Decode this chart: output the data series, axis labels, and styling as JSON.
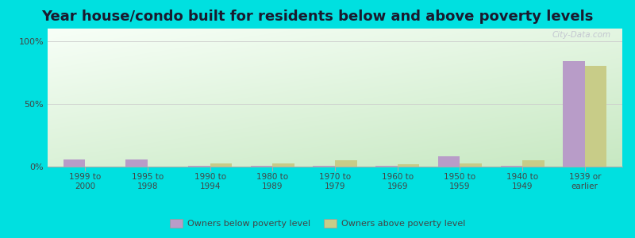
{
  "title": "Year house/condo built for residents below and above poverty levels",
  "categories": [
    "1999 to\n2000",
    "1995 to\n1998",
    "1990 to\n1994",
    "1980 to\n1989",
    "1970 to\n1979",
    "1960 to\n1969",
    "1950 to\n1959",
    "1940 to\n1949",
    "1939 or\nearlier"
  ],
  "below_poverty": [
    5.5,
    5.5,
    0.5,
    0.5,
    0.5,
    0.5,
    8.0,
    0.5,
    84.0
  ],
  "above_poverty": [
    0.0,
    0.0,
    2.5,
    2.5,
    5.0,
    2.0,
    2.5,
    5.0,
    80.0
  ],
  "below_color": "#b89cc8",
  "above_color": "#c8cc88",
  "outer_background": "#00e0e0",
  "yticks": [
    0,
    50,
    100
  ],
  "ylim": [
    0,
    110
  ],
  "bar_width": 0.35,
  "title_fontsize": 13,
  "title_color": "#1a1a2e",
  "legend_below_label": "Owners below poverty level",
  "legend_above_label": "Owners above poverty level",
  "gradient_top_color": "#f8fff8",
  "gradient_bottom_color": "#c8e8c0"
}
